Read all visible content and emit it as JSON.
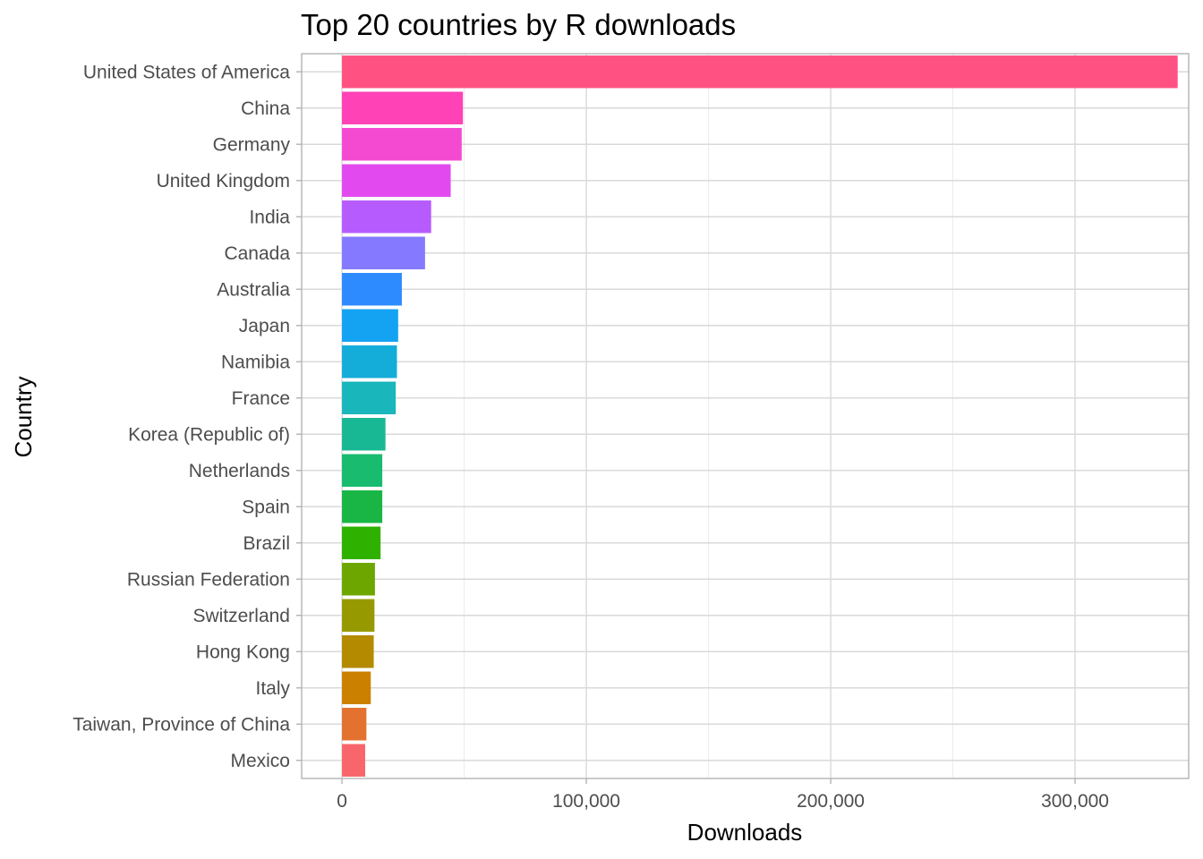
{
  "chart_data": {
    "type": "bar",
    "orientation": "horizontal",
    "title": "Top 20 countries by R downloads",
    "xlabel": "Downloads",
    "ylabel": "Country",
    "xlim": [
      -16500,
      346500
    ],
    "xticks": [
      0,
      100000,
      200000,
      300000
    ],
    "xtick_labels": [
      "0",
      "100,000",
      "200,000",
      "300,000"
    ],
    "grid": true,
    "legend": "none",
    "categories": [
      "United States of America",
      "China",
      "Germany",
      "United Kingdom",
      "India",
      "Canada",
      "Australia",
      "Japan",
      "Namibia",
      "France",
      "Korea (Republic of)",
      "Netherlands",
      "Spain",
      "Brazil",
      "Russian Federation",
      "Switzerland",
      "Hong Kong",
      "Italy",
      "Taiwan, Province of China",
      "Mexico"
    ],
    "values": [
      342000,
      49500,
      49000,
      44500,
      36500,
      34000,
      24500,
      23000,
      22500,
      22000,
      17800,
      16500,
      16500,
      15800,
      13500,
      13300,
      13000,
      11800,
      10000,
      9500
    ],
    "colors": [
      "#FF5283",
      "#FF42B5",
      "#F44AD2",
      "#E24AF0",
      "#B65CFF",
      "#8479FF",
      "#2E8BFF",
      "#14A3F3",
      "#14ADD9",
      "#19B6BC",
      "#19B894",
      "#19BB6E",
      "#19B645",
      "#2FB100",
      "#6EA600",
      "#969A00",
      "#B38A00",
      "#CC8000",
      "#E37230",
      "#F8666B"
    ]
  }
}
